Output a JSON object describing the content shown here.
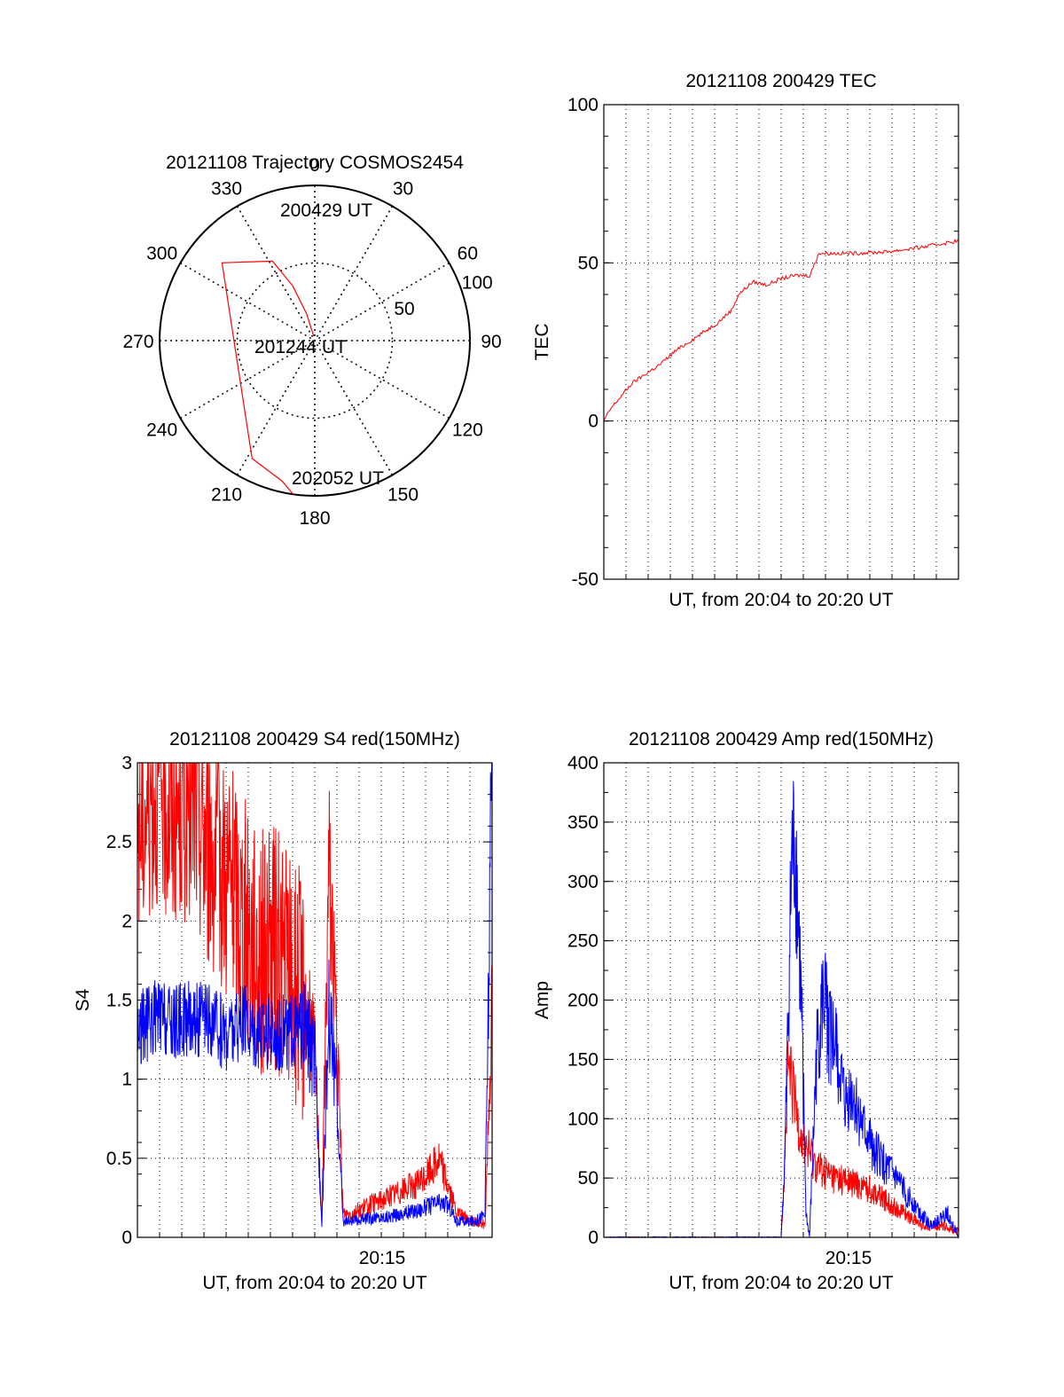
{
  "colors": {
    "red_series": "#ff0000",
    "blue_series": "#0000ff",
    "axes": "#000000",
    "grid": "#000000",
    "background": "#ffffff"
  },
  "chart_data": [
    {
      "type": "polar",
      "title": "20121108 Trajectory COSMOS2454",
      "angle_labels": [
        "0",
        "30",
        "60",
        "90",
        "120",
        "150",
        "180",
        "210",
        "240",
        "270",
        "300",
        "330"
      ],
      "radial_labels": [
        "50",
        "100"
      ],
      "radial_max": 100,
      "grid": true,
      "annotations": [
        "200429 UT",
        "201244 UT",
        "202052 UT"
      ],
      "series": [
        {
          "color": "#ff0000",
          "points": [
            [
              -13,
              3
            ],
            [
              -17,
              18
            ],
            [
              -22,
              38
            ],
            [
              -28,
              58
            ],
            [
              -50,
              78
            ],
            [
              -152,
              86
            ],
            [
              -167,
              93
            ],
            [
              -172,
              100
            ]
          ]
        }
      ]
    },
    {
      "type": "line",
      "title": "20121108 200429 TEC",
      "xlabel": "UT, from 20:04 to 20:20 UT",
      "ylabel": "TEC",
      "yticks": [
        "100",
        "50",
        "0",
        "-50"
      ],
      "ylim": [
        -50,
        100
      ],
      "xlim": [
        0,
        1
      ],
      "grid": true,
      "series": [
        {
          "color": "#ff0000",
          "x": [
            0.0,
            0.02,
            0.05,
            0.08,
            0.12,
            0.16,
            0.2,
            0.24,
            0.28,
            0.32,
            0.36,
            0.38,
            0.42,
            0.46,
            0.5,
            0.54,
            0.58,
            0.6,
            0.6,
            0.7,
            0.8,
            0.9,
            1.0
          ],
          "y": [
            0,
            4,
            8,
            12,
            15,
            18,
            22,
            25,
            28,
            31,
            35,
            40,
            44,
            43,
            45,
            46,
            46,
            51,
            53,
            53,
            53.5,
            55,
            57
          ]
        }
      ]
    },
    {
      "type": "line",
      "title": "20121108 200429 S4 red(150MHz)",
      "xlabel": "UT, from 20:04 to 20:20 UT",
      "ylabel": "S4",
      "xtick_labels": [
        "20:15"
      ],
      "yticks": [
        "3",
        "2.5",
        "2",
        "1.5",
        "1",
        "0.5",
        "0"
      ],
      "ylim": [
        0,
        3
      ],
      "xlim": [
        0,
        1
      ],
      "grid": true,
      "series": [
        {
          "color": "#ff0000",
          "x": [
            0.0,
            0.05,
            0.1,
            0.15,
            0.2,
            0.25,
            0.3,
            0.35,
            0.4,
            0.47,
            0.5,
            0.52,
            0.54,
            0.56,
            0.58,
            0.6,
            0.65,
            0.7,
            0.75,
            0.8,
            0.85,
            0.88,
            0.9,
            0.95,
            0.98,
            1.0
          ],
          "y": [
            2.6,
            2.9,
            2.7,
            2.8,
            2.5,
            2.3,
            2.0,
            1.8,
            1.8,
            1.5,
            1.2,
            0.1,
            2.4,
            1.4,
            0.15,
            0.15,
            0.2,
            0.25,
            0.3,
            0.35,
            0.5,
            0.3,
            0.15,
            0.1,
            0.08,
            1.5
          ]
        },
        {
          "color": "#0000ff",
          "x": [
            0.0,
            0.05,
            0.1,
            0.15,
            0.2,
            0.25,
            0.3,
            0.35,
            0.4,
            0.47,
            0.5,
            0.52,
            0.54,
            0.56,
            0.58,
            0.6,
            0.65,
            0.7,
            0.75,
            0.8,
            0.85,
            0.88,
            0.9,
            0.95,
            0.98,
            1.0
          ],
          "y": [
            1.3,
            1.4,
            1.35,
            1.4,
            1.35,
            1.3,
            1.35,
            1.3,
            1.3,
            1.3,
            1.1,
            0.1,
            1.4,
            1.0,
            0.1,
            0.1,
            0.12,
            0.13,
            0.15,
            0.18,
            0.22,
            0.2,
            0.1,
            0.1,
            0.15,
            3.0
          ]
        }
      ]
    },
    {
      "type": "line",
      "title": "20121108 200429 Amp red(150MHz)",
      "xlabel": "UT, from 20:04 to 20:20 UT",
      "ylabel": "Amp",
      "xtick_labels": [
        "20:15"
      ],
      "yticks": [
        "400",
        "350",
        "300",
        "250",
        "200",
        "150",
        "100",
        "50",
        "0"
      ],
      "ylim": [
        0,
        400
      ],
      "xlim": [
        0,
        1
      ],
      "grid": true,
      "series": [
        {
          "color": "#ff0000",
          "x": [
            0.0,
            0.5,
            0.51,
            0.52,
            0.54,
            0.56,
            0.58,
            0.6,
            0.62,
            0.65,
            0.7,
            0.75,
            0.8,
            0.85,
            0.9,
            0.95,
            1.0
          ],
          "y": [
            0,
            0,
            60,
            140,
            110,
            80,
            70,
            60,
            55,
            50,
            45,
            40,
            30,
            20,
            10,
            10,
            5
          ]
        },
        {
          "color": "#0000ff",
          "x": [
            0.0,
            0.5,
            0.51,
            0.53,
            0.54,
            0.55,
            0.56,
            0.57,
            0.58,
            0.6,
            0.62,
            0.63,
            0.64,
            0.66,
            0.68,
            0.7,
            0.73,
            0.77,
            0.82,
            0.87,
            0.92,
            0.97,
            1.0
          ],
          "y": [
            0,
            0,
            60,
            310,
            320,
            250,
            160,
            20,
            0,
            150,
            200,
            180,
            170,
            150,
            110,
            120,
            90,
            70,
            50,
            30,
            10,
            20,
            0
          ]
        }
      ]
    }
  ]
}
